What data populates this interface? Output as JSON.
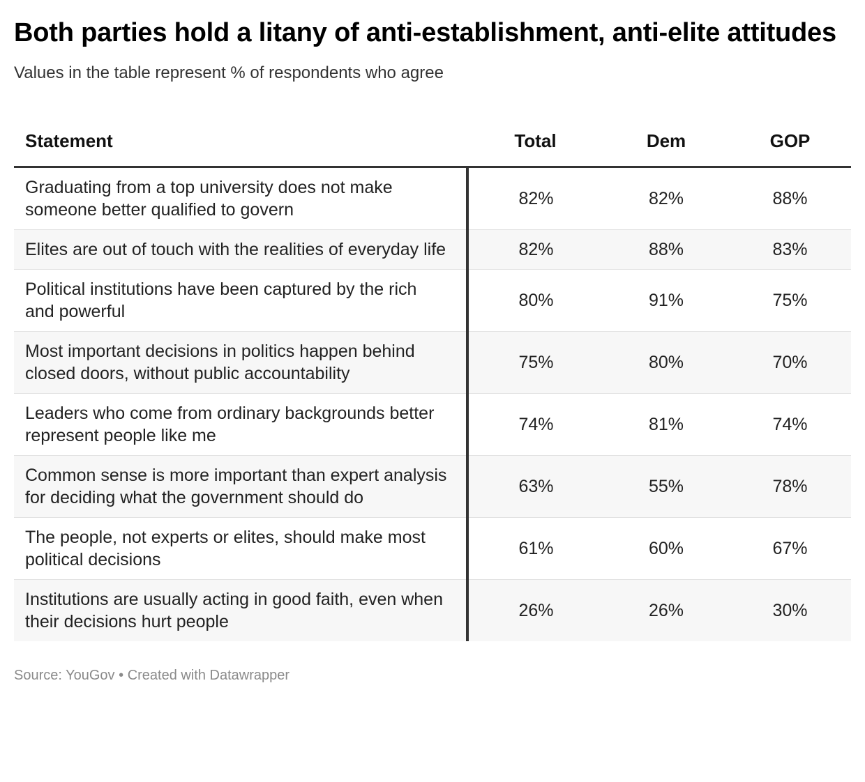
{
  "header": {
    "title": "Both parties hold a litany of anti-establishment, anti-elite attitudes",
    "subtitle": "Values in the table represent % of respondents who agree"
  },
  "footer": {
    "source": "Source: YouGov",
    "separator": "•",
    "credit": "Created with Datawrapper"
  },
  "chart_data": {
    "type": "table",
    "columns": [
      "Statement",
      "Total",
      "Dem",
      "GOP"
    ],
    "rows": [
      {
        "statement": "Graduating from a top university does not make someone better qualified to govern",
        "total": "82%",
        "dem": "82%",
        "gop": "88%"
      },
      {
        "statement": "Elites are out of touch with the realities of everyday life",
        "total": "82%",
        "dem": "88%",
        "gop": "83%"
      },
      {
        "statement": "Political institutions have been captured by the rich and powerful",
        "total": "80%",
        "dem": "91%",
        "gop": "75%"
      },
      {
        "statement": "Most important decisions in politics happen behind closed doors, without public accountability",
        "total": "75%",
        "dem": "80%",
        "gop": "70%"
      },
      {
        "statement": "Leaders who come from ordinary backgrounds better represent people like me",
        "total": "74%",
        "dem": "81%",
        "gop": "74%"
      },
      {
        "statement": "Common sense is more important than expert analysis for deciding what the government should do",
        "total": "63%",
        "dem": "55%",
        "gop": "78%"
      },
      {
        "statement": "The people, not experts or elites, should make most political decisions",
        "total": "61%",
        "dem": "60%",
        "gop": "67%"
      },
      {
        "statement": "Institutions are usually acting in good faith, even when their decisions hurt people",
        "total": "26%",
        "dem": "26%",
        "gop": "30%"
      }
    ]
  }
}
